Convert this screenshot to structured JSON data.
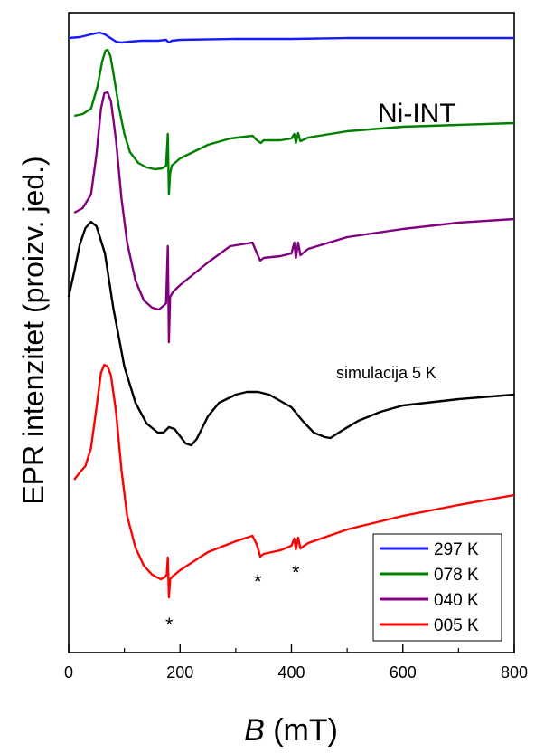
{
  "chart_data": {
    "type": "line",
    "title": "",
    "xlabel_italic": "B",
    "xlabel_rest": " (mT)",
    "ylabel": "EPR intenzitet (proizv. jed.)",
    "xlim": [
      0,
      800
    ],
    "x_ticks": [
      0,
      200,
      400,
      600,
      800
    ],
    "y_ticks": [],
    "annotations": {
      "sample": "Ni-INT",
      "simulation": "simulacija 5 K",
      "star": "*"
    },
    "legend_position": "bottom-right",
    "series": [
      {
        "name": "297 K",
        "color": "#1a1aff",
        "points": [
          [
            0,
            42
          ],
          [
            20,
            41
          ],
          [
            40,
            38
          ],
          [
            55,
            36
          ],
          [
            65,
            38
          ],
          [
            75,
            42
          ],
          [
            85,
            46
          ],
          [
            95,
            47
          ],
          [
            110,
            46
          ],
          [
            130,
            45
          ],
          [
            160,
            45
          ],
          [
            175,
            44
          ],
          [
            180,
            47
          ],
          [
            185,
            45
          ],
          [
            200,
            44
          ],
          [
            300,
            43
          ],
          [
            400,
            43
          ],
          [
            500,
            42
          ],
          [
            600,
            42
          ],
          [
            700,
            42
          ],
          [
            800,
            42
          ]
        ]
      },
      {
        "name": "078 K",
        "color": "#008000",
        "points": [
          [
            10,
            128
          ],
          [
            25,
            126
          ],
          [
            40,
            120
          ],
          [
            52,
            95
          ],
          [
            60,
            68
          ],
          [
            66,
            56
          ],
          [
            70,
            55
          ],
          [
            75,
            62
          ],
          [
            80,
            80
          ],
          [
            90,
            118
          ],
          [
            100,
            148
          ],
          [
            110,
            168
          ],
          [
            125,
            180
          ],
          [
            140,
            185
          ],
          [
            155,
            187
          ],
          [
            168,
            186
          ],
          [
            175,
            183
          ],
          [
            178,
            148
          ],
          [
            180,
            215
          ],
          [
            182,
            192
          ],
          [
            185,
            183
          ],
          [
            200,
            175
          ],
          [
            250,
            160
          ],
          [
            290,
            153
          ],
          [
            330,
            150
          ],
          [
            338,
            155
          ],
          [
            345,
            158
          ],
          [
            350,
            155
          ],
          [
            380,
            155
          ],
          [
            400,
            153
          ],
          [
            405,
            148
          ],
          [
            408,
            158
          ],
          [
            412,
            147
          ],
          [
            416,
            156
          ],
          [
            430,
            152
          ],
          [
            500,
            145
          ],
          [
            600,
            140
          ],
          [
            700,
            138
          ],
          [
            800,
            136
          ]
        ]
      },
      {
        "name": "040 K",
        "color": "#800080",
        "points": [
          [
            10,
            235
          ],
          [
            25,
            230
          ],
          [
            40,
            215
          ],
          [
            50,
            170
          ],
          [
            58,
            120
          ],
          [
            64,
            103
          ],
          [
            70,
            102
          ],
          [
            76,
            112
          ],
          [
            85,
            155
          ],
          [
            95,
            220
          ],
          [
            105,
            268
          ],
          [
            120,
            310
          ],
          [
            135,
            332
          ],
          [
            150,
            340
          ],
          [
            162,
            342
          ],
          [
            170,
            338
          ],
          [
            175,
            335
          ],
          [
            178,
            272
          ],
          [
            180,
            378
          ],
          [
            182,
            328
          ],
          [
            188,
            322
          ],
          [
            200,
            315
          ],
          [
            250,
            290
          ],
          [
            290,
            272
          ],
          [
            330,
            268
          ],
          [
            338,
            280
          ],
          [
            344,
            288
          ],
          [
            350,
            285
          ],
          [
            380,
            283
          ],
          [
            400,
            280
          ],
          [
            405,
            268
          ],
          [
            408,
            285
          ],
          [
            412,
            268
          ],
          [
            416,
            282
          ],
          [
            430,
            275
          ],
          [
            500,
            262
          ],
          [
            600,
            253
          ],
          [
            700,
            246
          ],
          [
            800,
            242
          ]
        ]
      },
      {
        "name": "simulacija 5 K",
        "color": "#000000",
        "legend": false,
        "points": [
          [
            0,
            328
          ],
          [
            10,
            300
          ],
          [
            20,
            270
          ],
          [
            30,
            252
          ],
          [
            40,
            245
          ],
          [
            50,
            250
          ],
          [
            65,
            280
          ],
          [
            80,
            340
          ],
          [
            100,
            405
          ],
          [
            120,
            445
          ],
          [
            140,
            468
          ],
          [
            160,
            478
          ],
          [
            170,
            478
          ],
          [
            180,
            472
          ],
          [
            190,
            474
          ],
          [
            200,
            482
          ],
          [
            210,
            490
          ],
          [
            220,
            492
          ],
          [
            230,
            485
          ],
          [
            250,
            460
          ],
          [
            270,
            445
          ],
          [
            300,
            436
          ],
          [
            320,
            433
          ],
          [
            340,
            433
          ],
          [
            360,
            436
          ],
          [
            380,
            443
          ],
          [
            400,
            450
          ],
          [
            420,
            465
          ],
          [
            440,
            478
          ],
          [
            460,
            483
          ],
          [
            470,
            484
          ],
          [
            490,
            476
          ],
          [
            520,
            465
          ],
          [
            560,
            455
          ],
          [
            600,
            448
          ],
          [
            700,
            441
          ],
          [
            800,
            436
          ]
        ]
      },
      {
        "name": "005 K",
        "color": "#ff0000",
        "points": [
          [
            10,
            530
          ],
          [
            20,
            522
          ],
          [
            30,
            515
          ],
          [
            40,
            495
          ],
          [
            50,
            450
          ],
          [
            58,
            412
          ],
          [
            64,
            403
          ],
          [
            70,
            405
          ],
          [
            76,
            415
          ],
          [
            85,
            455
          ],
          [
            95,
            520
          ],
          [
            105,
            570
          ],
          [
            120,
            605
          ],
          [
            135,
            625
          ],
          [
            150,
            635
          ],
          [
            165,
            640
          ],
          [
            172,
            638
          ],
          [
            176,
            635
          ],
          [
            178,
            616
          ],
          [
            180,
            660
          ],
          [
            182,
            640
          ],
          [
            188,
            636
          ],
          [
            200,
            630
          ],
          [
            250,
            610
          ],
          [
            300,
            598
          ],
          [
            330,
            592
          ],
          [
            338,
            602
          ],
          [
            344,
            615
          ],
          [
            350,
            612
          ],
          [
            380,
            608
          ],
          [
            400,
            603
          ],
          [
            405,
            595
          ],
          [
            408,
            607
          ],
          [
            412,
            594
          ],
          [
            416,
            606
          ],
          [
            430,
            600
          ],
          [
            500,
            585
          ],
          [
            600,
            570
          ],
          [
            700,
            558
          ],
          [
            800,
            547
          ]
        ]
      }
    ]
  }
}
